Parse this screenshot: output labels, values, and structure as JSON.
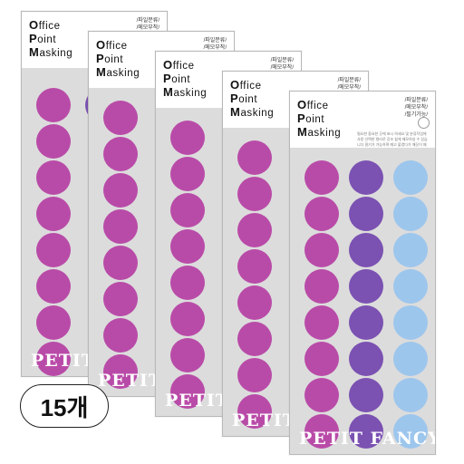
{
  "product": {
    "title_line1_cap": "O",
    "title_line1_rest": "ffice",
    "title_line2_cap": "P",
    "title_line2_rest": "oint",
    "title_line3_cap": "M",
    "title_line3_rest": "asking",
    "tags": [
      "/파일분류/",
      "/메모부착/",
      "/필기가능/"
    ],
    "description": "필요한 중요한 곳에 표시 하세요 및 분류작업에 사용 선택한 컬러로 강조 쉽게 메모하실 수 있습니다 필기가 가능하며 떼고 붙였다가 깨끗이 떼어지는 제품입니다",
    "brand": "PETIT FANCY",
    "colors": {
      "magenta": "#b94ba8",
      "purple": "#7b51b2",
      "sky": "#9dc6ed"
    }
  },
  "quantity_badge": "15개"
}
